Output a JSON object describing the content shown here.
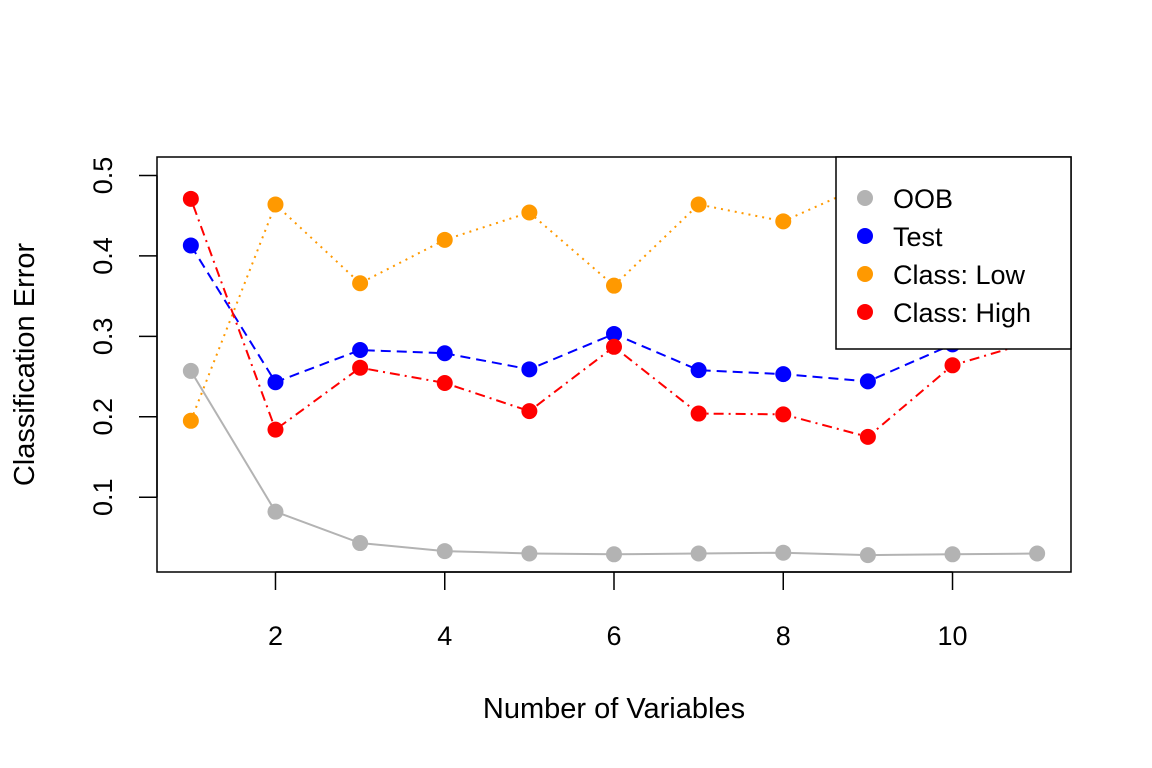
{
  "chart_data": {
    "type": "line",
    "title": "",
    "xlabel": "Number of Variables",
    "ylabel": "Classification Error",
    "xlim": [
      0.6,
      11.4
    ],
    "ylim": [
      0.007,
      0.523
    ],
    "x_ticks": [
      2,
      4,
      6,
      8,
      10
    ],
    "x_tick_labels": [
      "2",
      "4",
      "6",
      "8",
      "10"
    ],
    "y_ticks": [
      0.1,
      0.2,
      0.3,
      0.4,
      0.5
    ],
    "y_tick_labels": [
      "0.1",
      "0.2",
      "0.3",
      "0.4",
      "0.5"
    ],
    "grid": false,
    "legend_position": "top-right",
    "x": [
      1,
      2,
      3,
      4,
      5,
      6,
      7,
      8,
      9,
      10,
      11
    ],
    "series": [
      {
        "name": "OOB",
        "color": "#b3b3b3",
        "line_style": "solid",
        "values": [
          0.257,
          0.082,
          0.043,
          0.033,
          0.03,
          0.029,
          0.03,
          0.031,
          0.028,
          0.029,
          0.03
        ]
      },
      {
        "name": "Test",
        "color": "#0000ff",
        "line_style": "dashed",
        "values": [
          0.413,
          0.243,
          0.283,
          0.279,
          0.259,
          0.303,
          0.258,
          0.253,
          0.244,
          0.29,
          0.3
        ]
      },
      {
        "name": "Class: Low",
        "color": "#ff9900",
        "line_style": "dotted",
        "values": [
          0.195,
          0.464,
          0.366,
          0.42,
          0.454,
          0.363,
          0.464,
          0.443,
          0.49,
          0.46,
          0.44
        ]
      },
      {
        "name": "Class: High",
        "color": "#ff0000",
        "line_style": "dotdash",
        "values": [
          0.471,
          0.184,
          0.261,
          0.242,
          0.207,
          0.287,
          0.204,
          0.203,
          0.175,
          0.264,
          0.295
        ]
      }
    ]
  }
}
